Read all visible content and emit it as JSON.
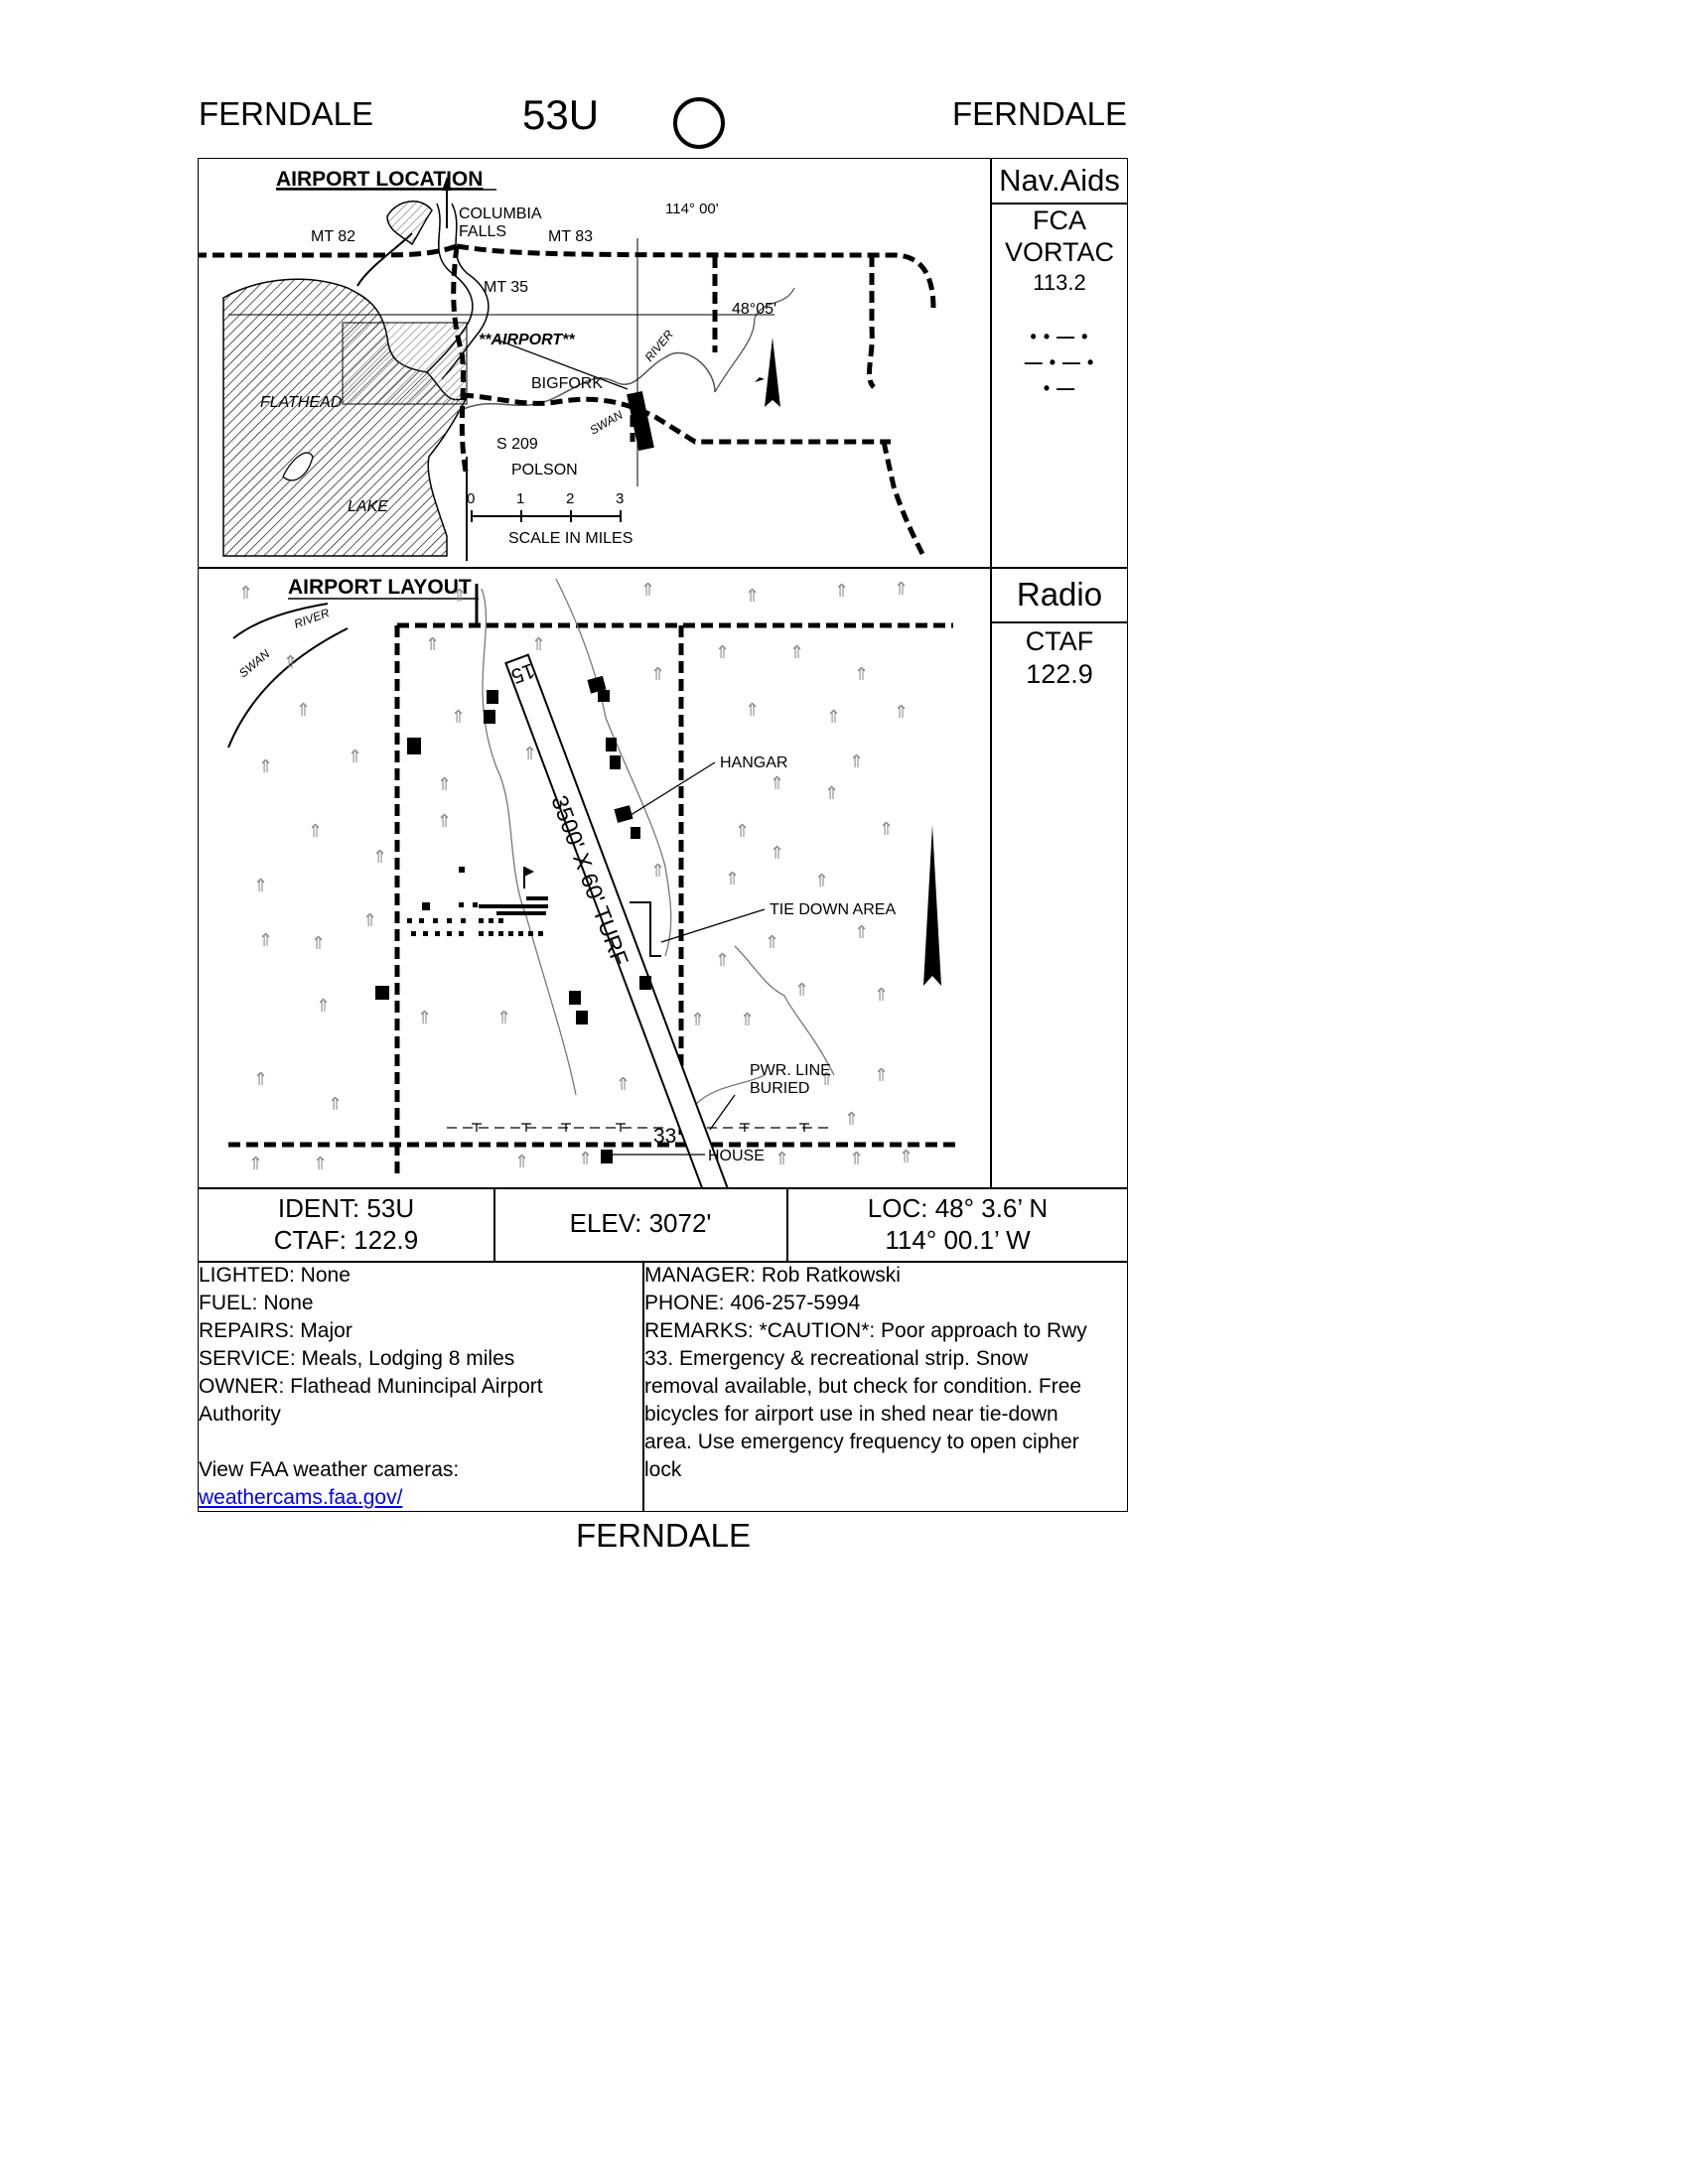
{
  "header": {
    "left_city": "FERNDALE",
    "ident": "53U",
    "right_city": "FERNDALE",
    "symbol_icon": "open-circle-icon"
  },
  "location_map": {
    "title": "AIRPORT LOCATION",
    "labels": {
      "mt82": "MT 82",
      "columbia": "COLUMBIA",
      "falls": "FALLS",
      "mt83": "MT 83",
      "lon": "114° 00'",
      "mt35": "MT 35",
      "lat": "48°05'",
      "airport": "**AIRPORT**",
      "bigfork": "BIGFORK",
      "flathead": "FLATHEAD",
      "lake": "LAKE",
      "swan": "SWAN",
      "river": "RIVER",
      "s209": "S 209",
      "polson": "POLSON",
      "scale": "SCALE IN MILES",
      "scale_ticks": [
        "0",
        "1",
        "2",
        "3"
      ]
    }
  },
  "navaids": {
    "header": "Nav.Aids",
    "name1": "FCA",
    "name2": "VORTAC",
    "freq": "113.2",
    "morse": [
      "• • — •",
      "— • — •",
      "• —"
    ]
  },
  "layout_map": {
    "title": "AIRPORT LAYOUT",
    "labels": {
      "swan": "SWAN",
      "river": "RIVER",
      "rwy15": "15",
      "rwy33": "33",
      "runway": "3500' X 60' TURF",
      "hangar": "HANGAR",
      "tiedown": "TIE DOWN AREA",
      "pwr1": "PWR. LINE",
      "pwr2": "BURIED",
      "house": "HOUSE"
    }
  },
  "radio": {
    "header": "Radio",
    "type": "CTAF",
    "freq": "122.9"
  },
  "summary": {
    "ident": "IDENT: 53U",
    "ctaf": "CTAF: 122.9",
    "elev": "ELEV: 3072'",
    "loc_lat": "LOC: 48° 3.6’ N",
    "loc_lon": "114° 00.1’ W"
  },
  "details_left": {
    "lighted": "LIGHTED: None",
    "fuel": "FUEL: None",
    "repairs": "REPAIRS: Major",
    "service": "SERVICE: Meals, Lodging 8 miles",
    "owner1": "OWNER: Flathead Munincipal Airport",
    "owner2": "Authority",
    "weather_text": "View FAA weather cameras:",
    "weather_link": "weathercams.faa.gov/"
  },
  "details_right": {
    "manager": "MANAGER: Rob Ratkowski",
    "phone": "PHONE: 406-257-5994",
    "remarks": [
      "REMARKS: *CAUTION*: Poor approach to Rwy",
      "33. Emergency & recreational strip. Snow",
      "removal available, but check for condition. Free",
      "bicycles for airport use in shed near tie-down",
      "area. Use emergency frequency to open cipher",
      "lock"
    ]
  },
  "footer": {
    "city": "FERNDALE"
  }
}
